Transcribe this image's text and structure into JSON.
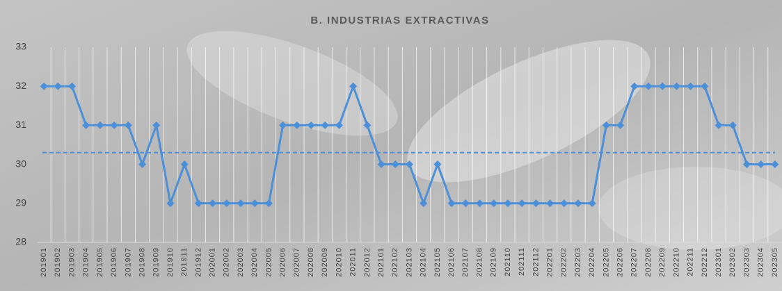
{
  "chart_data": {
    "type": "line",
    "title": "B. INDUSTRIAS EXTRACTIVAS",
    "categories": [
      "201901",
      "201902",
      "201903",
      "201904",
      "201905",
      "201906",
      "201907",
      "201908",
      "201909",
      "201910",
      "201911",
      "201912",
      "202001",
      "202002",
      "202003",
      "202004",
      "202005",
      "202006",
      "202007",
      "202008",
      "202009",
      "202010",
      "202011",
      "202012",
      "202101",
      "202102",
      "202103",
      "202104",
      "202105",
      "202106",
      "202107",
      "202108",
      "202109",
      "202110",
      "202111",
      "202112",
      "202201",
      "202202",
      "202203",
      "202204",
      "202205",
      "202206",
      "202207",
      "202208",
      "202209",
      "202210",
      "202211",
      "202212",
      "202301",
      "202302",
      "202303",
      "202304",
      "202305"
    ],
    "values": [
      32,
      32,
      32,
      31,
      31,
      31,
      31,
      30,
      31,
      29,
      30,
      29,
      29,
      29,
      29,
      29,
      29,
      31,
      31,
      31,
      31,
      31,
      32,
      31,
      30,
      30,
      30,
      29,
      30,
      29,
      29,
      29,
      29,
      29,
      29,
      29,
      29,
      29,
      29,
      29,
      31,
      31,
      32,
      32,
      32,
      32,
      32,
      32,
      31,
      31,
      30,
      30,
      30
    ],
    "mean": 30.3,
    "color": "#4a8fd8",
    "ylim": [
      28,
      33
    ],
    "yticks": [
      28,
      29,
      30,
      31,
      32,
      33
    ],
    "grid": true
  }
}
